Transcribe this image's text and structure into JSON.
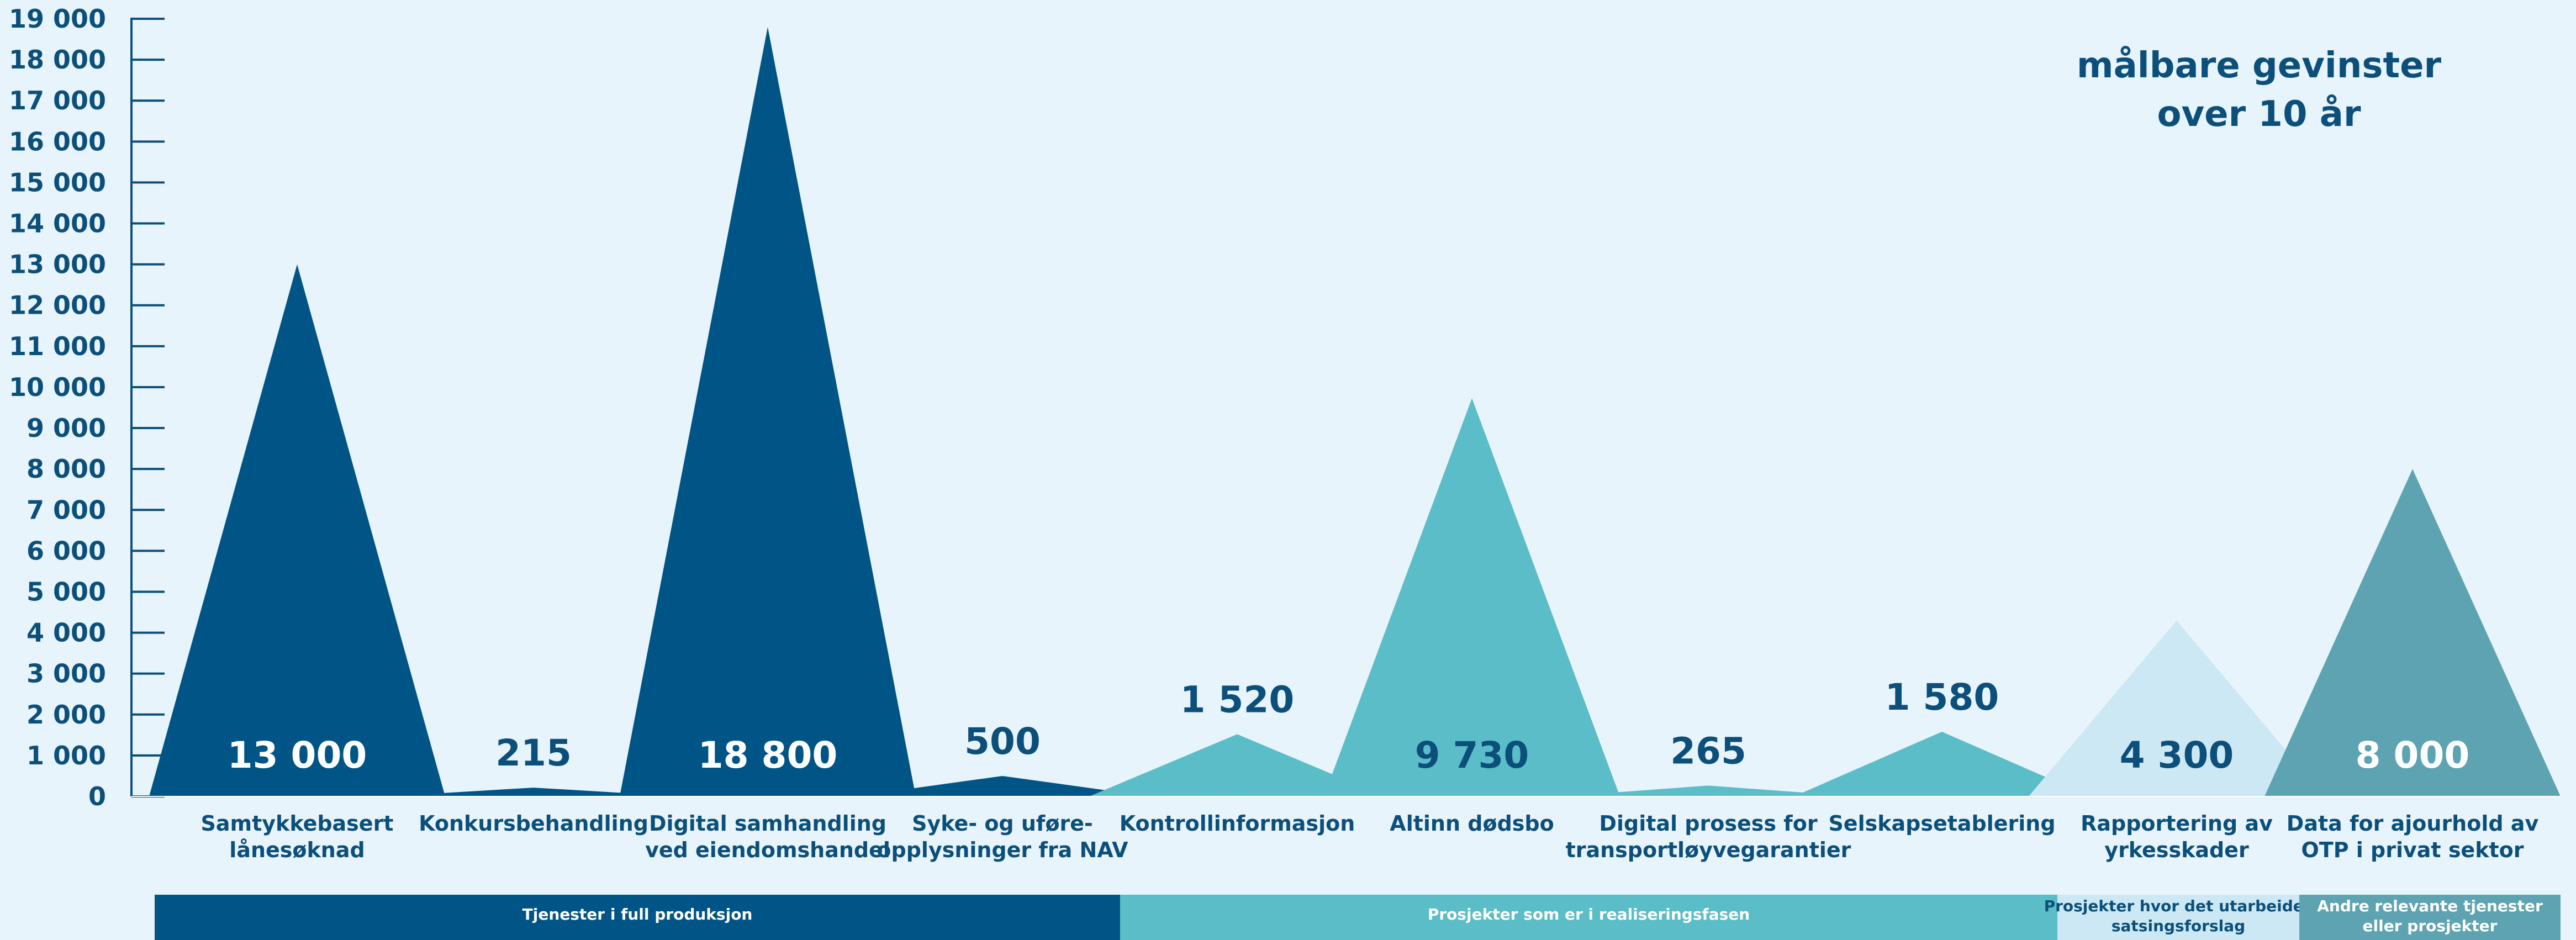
{
  "chart_data": {
    "type": "area",
    "title": "",
    "annotation": [
      "målbare gevinster",
      "over 10 år"
    ],
    "ylim": [
      0,
      19000
    ],
    "yticks": [
      {
        "value": 0,
        "label": "0"
      },
      {
        "value": 1000,
        "label": "1 000"
      },
      {
        "value": 2000,
        "label": "2 000"
      },
      {
        "value": 3000,
        "label": "3 000"
      },
      {
        "value": 4000,
        "label": "4 000"
      },
      {
        "value": 5000,
        "label": "5 000"
      },
      {
        "value": 6000,
        "label": "6 000"
      },
      {
        "value": 7000,
        "label": "7 000"
      },
      {
        "value": 8000,
        "label": "8 000"
      },
      {
        "value": 9000,
        "label": "9 000"
      },
      {
        "value": 10000,
        "label": "10 000"
      },
      {
        "value": 11000,
        "label": "11 000"
      },
      {
        "value": 12000,
        "label": "12 000"
      },
      {
        "value": 13000,
        "label": "13 000"
      },
      {
        "value": 14000,
        "label": "14 000"
      },
      {
        "value": 15000,
        "label": "15 000"
      },
      {
        "value": 16000,
        "label": "16 000"
      },
      {
        "value": 17000,
        "label": "17 000"
      },
      {
        "value": 18000,
        "label": "18 000"
      },
      {
        "value": 19000,
        "label": "19 000"
      }
    ],
    "grid": false,
    "items": [
      {
        "category": [
          "Samtykkebasert",
          "lånesøknad"
        ],
        "value": 13000,
        "label": "13 000",
        "group": 0
      },
      {
        "category": [
          "Konkursbehandling"
        ],
        "value": 215,
        "label": "215",
        "group": 0
      },
      {
        "category": [
          "Digital samhandling",
          "ved eiendomshandel"
        ],
        "value": 18800,
        "label": "18 800",
        "group": 0
      },
      {
        "category": [
          "Syke- og uføre-",
          "opplysninger fra NAV"
        ],
        "value": 500,
        "label": "500",
        "group": 0
      },
      {
        "category": [
          "Kontrollinformasjon"
        ],
        "value": 1520,
        "label": "1 520",
        "group": 1
      },
      {
        "category": [
          "Altinn dødsbo"
        ],
        "value": 9730,
        "label": "9 730",
        "group": 1
      },
      {
        "category": [
          "Digital prosess for",
          "transportløyvegarantier"
        ],
        "value": 265,
        "label": "265",
        "group": 1
      },
      {
        "category": [
          "Selskapsetablering"
        ],
        "value": 1580,
        "label": "1 580",
        "group": 1
      },
      {
        "category": [
          "Rapportering av",
          "yrkesskader"
        ],
        "value": 4300,
        "label": "4 300",
        "group": 2
      },
      {
        "category": [
          "Data for ajourhold av",
          "OTP i privat sektor"
        ],
        "value": 8000,
        "label": "8 000",
        "group": 3
      }
    ],
    "groups": [
      {
        "name": [
          "Tjenester i full produksjon"
        ],
        "color": "#005586",
        "text_color": "#ffffff",
        "value_label_color": "#ffffff"
      },
      {
        "name": [
          "Prosjekter som er i realiseringsfasen"
        ],
        "color": "#5bbdc8",
        "text_color": "#ffffff",
        "value_label_color": "#0b4f7a"
      },
      {
        "name": [
          "Prosjekter hvor det utarbeides",
          "satsingsforslag"
        ],
        "color": "#cce8f4",
        "text_color": "#0b4f7a",
        "value_label_color": "#0b4f7a"
      },
      {
        "name": [
          "Andre relevante tjenester",
          "eller prosjekter"
        ],
        "color": "#5ea3b1",
        "text_color": "#ffffff",
        "value_label_color": "#ffffff"
      }
    ],
    "colors": {
      "background": "#e8f4fb",
      "axis": "#0b4f7a",
      "text": "#0b4f7a"
    }
  }
}
